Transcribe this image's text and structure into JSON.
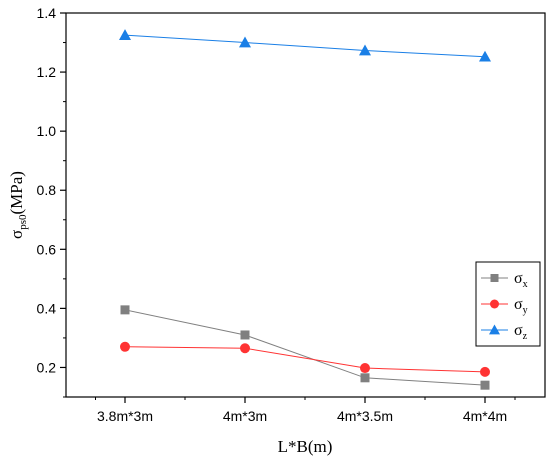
{
  "chart_data": {
    "type": "line",
    "title": "",
    "xlabel": "L*B(m)",
    "ylabel": "σ",
    "ylabel_sub": "ps0",
    "ylabel_unit": "(MPa)",
    "categories": [
      "3.8m*3m",
      "4m*3m",
      "4m*3.5m",
      "4m*4m"
    ],
    "ylim": [
      0.1,
      1.4
    ],
    "yticks": [
      0.2,
      0.4,
      0.6,
      0.8,
      1.0,
      1.2,
      1.4
    ],
    "ytick_labels": [
      "0.2",
      "0.4",
      "0.6",
      "0.8",
      "1.0",
      "1.2",
      "1.4"
    ],
    "grid": false,
    "legend_position": "lower-right",
    "series": [
      {
        "name": "σ",
        "sub": "x",
        "marker": "square",
        "color": "#808080",
        "values": [
          0.395,
          0.31,
          0.165,
          0.14
        ]
      },
      {
        "name": "σ",
        "sub": "y",
        "marker": "circle",
        "color": "#ff3333",
        "values": [
          0.27,
          0.265,
          0.198,
          0.185
        ]
      },
      {
        "name": "σ",
        "sub": "z",
        "marker": "triangle",
        "color": "#1a7fe6",
        "values": [
          1.325,
          1.3,
          1.273,
          1.252
        ]
      }
    ]
  }
}
